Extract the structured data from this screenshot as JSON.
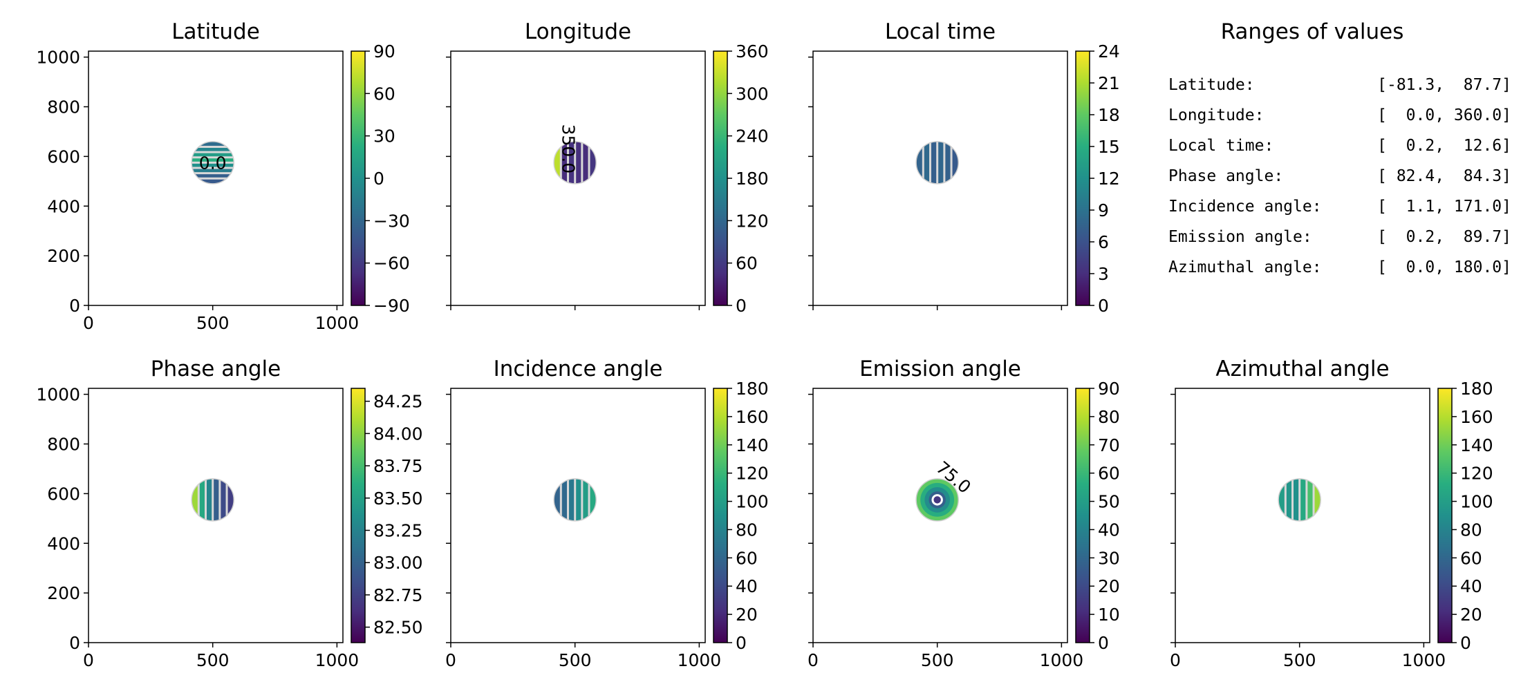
{
  "chart_data": [
    {
      "type": "heatmap",
      "title": "Latitude",
      "xlim": [
        0,
        1024
      ],
      "ylim": [
        0,
        1024
      ],
      "xticks": [
        "0",
        "500",
        "1000"
      ],
      "yticks": [
        "0",
        "200",
        "400",
        "600",
        "800",
        "1000"
      ],
      "colorbar_ticks": [
        "−90",
        "−60",
        "−30",
        "0",
        "30",
        "60",
        "90"
      ],
      "colorbar_range": [
        -90,
        90
      ],
      "disk": {
        "cx": 500,
        "cy": 575,
        "r": 85
      },
      "contour_labels": [
        "0.0"
      ]
    },
    {
      "type": "heatmap",
      "title": "Longitude",
      "xlim": [
        0,
        1024
      ],
      "ylim": [
        0,
        1024
      ],
      "xticks": [
        "",
        "",
        ""
      ],
      "yticks": [
        "",
        "",
        "",
        "",
        "",
        ""
      ],
      "colorbar_ticks": [
        "0",
        "60",
        "120",
        "180",
        "240",
        "300",
        "360"
      ],
      "colorbar_range": [
        0,
        360
      ],
      "disk": {
        "cx": 500,
        "cy": 575,
        "r": 85
      },
      "contour_labels": [
        "350.0"
      ]
    },
    {
      "type": "heatmap",
      "title": "Local time",
      "xlim": [
        0,
        1024
      ],
      "ylim": [
        0,
        1024
      ],
      "xticks": [
        "",
        "",
        ""
      ],
      "yticks": [
        "",
        "",
        "",
        "",
        "",
        ""
      ],
      "colorbar_ticks": [
        "0",
        "3",
        "6",
        "9",
        "12",
        "15",
        "18",
        "21",
        "24"
      ],
      "colorbar_range": [
        0,
        24
      ],
      "disk": {
        "cx": 500,
        "cy": 575,
        "r": 85
      },
      "contour_labels": []
    },
    {
      "type": "heatmap",
      "title": "Phase angle",
      "xlim": [
        0,
        1024
      ],
      "ylim": [
        0,
        1024
      ],
      "xticks": [
        "0",
        "500",
        "1000"
      ],
      "yticks": [
        "0",
        "200",
        "400",
        "600",
        "800",
        "1000"
      ],
      "colorbar_ticks": [
        "82.50",
        "82.75",
        "83.00",
        "83.25",
        "83.50",
        "83.75",
        "84.00",
        "84.25"
      ],
      "colorbar_range": [
        82.38,
        84.35
      ],
      "disk": {
        "cx": 500,
        "cy": 575,
        "r": 85
      },
      "contour_labels": []
    },
    {
      "type": "heatmap",
      "title": "Incidence angle",
      "xlim": [
        0,
        1024
      ],
      "ylim": [
        0,
        1024
      ],
      "xticks": [
        "0",
        "500",
        "1000"
      ],
      "yticks": [
        "",
        "",
        "",
        "",
        "",
        ""
      ],
      "colorbar_ticks": [
        "0",
        "20",
        "40",
        "60",
        "80",
        "100",
        "120",
        "140",
        "160",
        "180"
      ],
      "colorbar_range": [
        0,
        180
      ],
      "disk": {
        "cx": 500,
        "cy": 575,
        "r": 85
      },
      "contour_labels": []
    },
    {
      "type": "heatmap",
      "title": "Emission angle",
      "xlim": [
        0,
        1024
      ],
      "ylim": [
        0,
        1024
      ],
      "xticks": [
        "0",
        "500",
        "1000"
      ],
      "yticks": [
        "",
        "",
        "",
        "",
        "",
        ""
      ],
      "colorbar_ticks": [
        "0",
        "10",
        "20",
        "30",
        "40",
        "50",
        "60",
        "70",
        "80",
        "90"
      ],
      "colorbar_range": [
        0,
        90
      ],
      "disk": {
        "cx": 500,
        "cy": 575,
        "r": 85
      },
      "contour_labels": [
        "75.0"
      ]
    },
    {
      "type": "heatmap",
      "title": "Azimuthal angle",
      "xlim": [
        0,
        1024
      ],
      "ylim": [
        0,
        1024
      ],
      "xticks": [
        "0",
        "500",
        "1000"
      ],
      "yticks": [
        "",
        "",
        "",
        "",
        "",
        ""
      ],
      "colorbar_ticks": [
        "0",
        "20",
        "40",
        "60",
        "80",
        "100",
        "120",
        "140",
        "160",
        "180"
      ],
      "colorbar_range": [
        0,
        180
      ],
      "disk": {
        "cx": 500,
        "cy": 575,
        "r": 85
      },
      "contour_labels": []
    }
  ],
  "ranges_panel": {
    "title": "Ranges of values",
    "rows": [
      {
        "label": "Latitude:",
        "value": "[-81.3,  87.7]"
      },
      {
        "label": "Longitude:",
        "value": "[  0.0, 360.0]"
      },
      {
        "label": "Local time:",
        "value": "[  0.2,  12.6]"
      },
      {
        "label": "Phase angle:",
        "value": "[ 82.4,  84.3]"
      },
      {
        "label": "Incidence angle:",
        "value": "[  1.1, 171.0]"
      },
      {
        "label": "Emission angle:",
        "value": "[  0.2,  89.7]"
      },
      {
        "label": "Azimuthal angle:",
        "value": "[  0.0, 180.0]"
      }
    ]
  }
}
